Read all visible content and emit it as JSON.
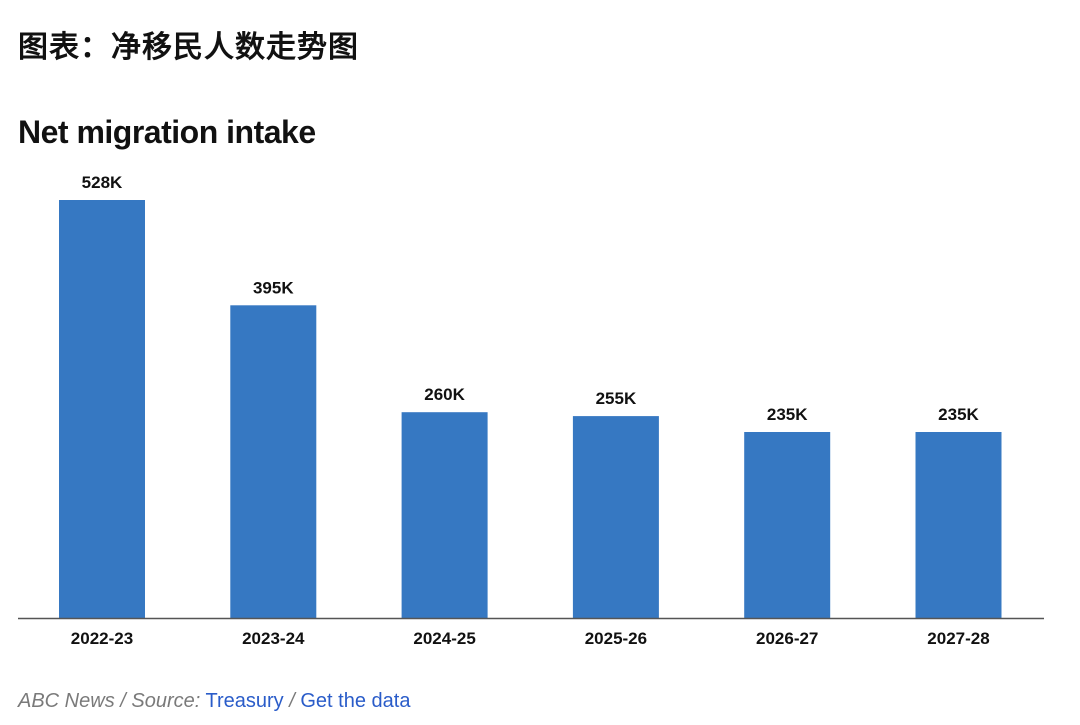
{
  "page": {
    "heading": "图表：净移民人数走势图"
  },
  "footer": {
    "publisher": "ABC News",
    "sep1": " / ",
    "source_label": "Source:",
    "source_link": "Treasury",
    "sep2": " / ",
    "data_link": "Get the data"
  },
  "colors": {
    "bar": "#3678c2",
    "axis": "#555555",
    "link": "#2a5cc9"
  },
  "chart_data": {
    "type": "bar",
    "title": "Net migration intake",
    "xlabel": "",
    "ylabel": "",
    "categories": [
      "2022-23",
      "2023-24",
      "2024-25",
      "2025-26",
      "2026-27",
      "2027-28"
    ],
    "values": [
      528000,
      395000,
      260000,
      255000,
      235000,
      235000
    ],
    "value_labels": [
      "528K",
      "395K",
      "260K",
      "255K",
      "235K",
      "235K"
    ],
    "ylim": [
      0,
      528000
    ],
    "grid": false,
    "legend": "none"
  }
}
